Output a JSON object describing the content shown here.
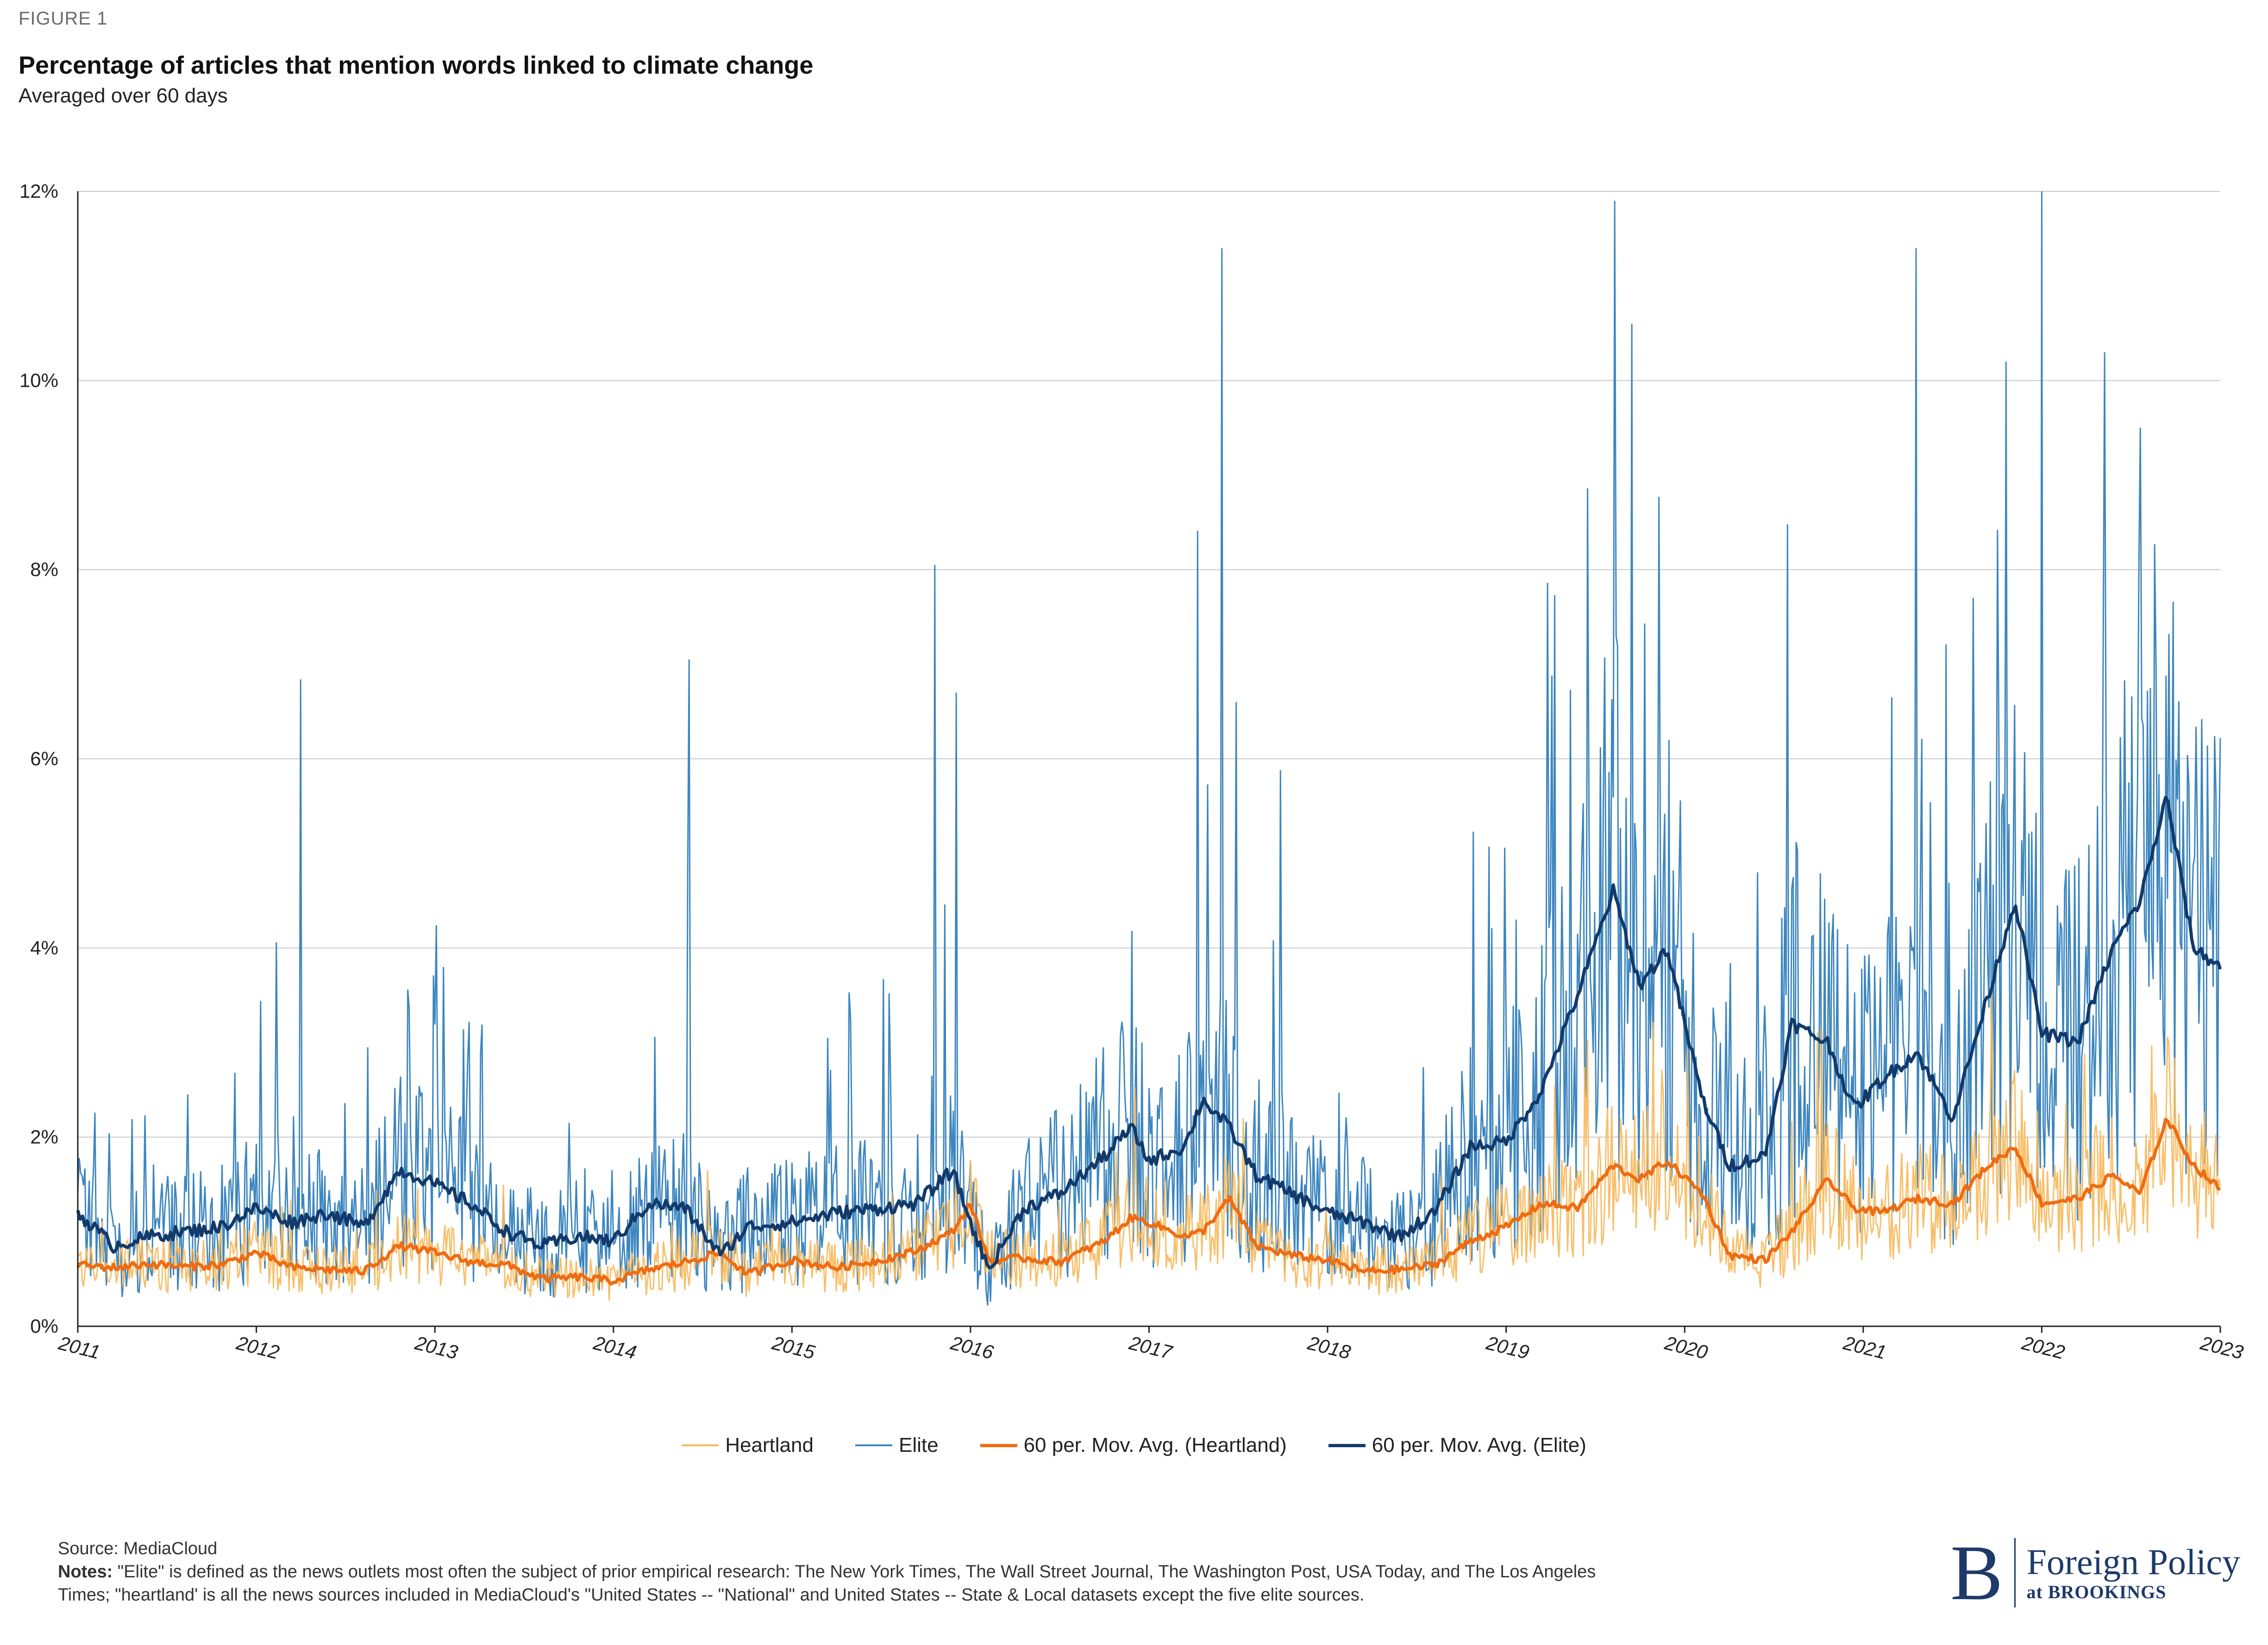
{
  "figure_label": "FIGURE 1",
  "chart_data": {
    "type": "line",
    "title": "Percentage of articles that mention words linked to climate change",
    "subtitle": "Averaged over 60 days",
    "xlabel": "",
    "ylabel": "",
    "xlim": [
      2011,
      2023
    ],
    "ylim": [
      0,
      12
    ],
    "x_ticks": [
      "2011",
      "2012",
      "2013",
      "2014",
      "2015",
      "2016",
      "2017",
      "2018",
      "2019",
      "2020",
      "2021",
      "2022",
      "2023"
    ],
    "y_ticks": [
      "0%",
      "2%",
      "4%",
      "6%",
      "8%",
      "10%",
      "12%"
    ],
    "grid": "horizontal",
    "legend_position": "bottom",
    "colors": {
      "heartland": "#f7b85a",
      "elite": "#3d86bf",
      "ma_heartland": "#ef6c12",
      "ma_elite": "#123a6b"
    },
    "series": [
      {
        "name": "Heartland",
        "key": "heartland",
        "x": [],
        "values": []
      },
      {
        "name": "Elite",
        "key": "elite",
        "x": [],
        "values": []
      },
      {
        "name": "60 per. Mov. Avg. (Heartland)",
        "key": "ma_heartland",
        "x": [
          2011.0,
          2011.2,
          2011.4,
          2011.6,
          2011.8,
          2012.0,
          2012.2,
          2012.4,
          2012.6,
          2012.8,
          2012.95,
          2013.2,
          2013.4,
          2013.6,
          2013.8,
          2014.0,
          2014.2,
          2014.4,
          2014.6,
          2014.75,
          2015.0,
          2015.25,
          2015.5,
          2015.7,
          2015.9,
          2016.0,
          2016.1,
          2016.3,
          2016.5,
          2016.75,
          2016.9,
          2017.0,
          2017.2,
          2017.3,
          2017.45,
          2017.6,
          2017.8,
          2018.0,
          2018.2,
          2018.4,
          2018.6,
          2018.8,
          2019.0,
          2019.2,
          2019.4,
          2019.6,
          2019.75,
          2019.9,
          2020.1,
          2020.25,
          2020.45,
          2020.6,
          2020.8,
          2020.95,
          2021.1,
          2021.3,
          2021.5,
          2021.7,
          2021.85,
          2022.0,
          2022.2,
          2022.4,
          2022.55,
          2022.7,
          2022.85,
          2023.0
        ],
        "values": [
          0.65,
          0.62,
          0.66,
          0.63,
          0.65,
          0.78,
          0.62,
          0.6,
          0.58,
          0.85,
          0.8,
          0.68,
          0.65,
          0.5,
          0.52,
          0.48,
          0.6,
          0.68,
          0.78,
          0.55,
          0.7,
          0.62,
          0.7,
          0.8,
          1.0,
          1.3,
          0.7,
          0.72,
          0.68,
          0.9,
          1.15,
          1.1,
          0.95,
          1.0,
          1.35,
          0.85,
          0.75,
          0.7,
          0.58,
          0.6,
          0.65,
          0.9,
          1.05,
          1.3,
          1.25,
          1.7,
          1.55,
          1.75,
          1.4,
          0.75,
          0.7,
          1.0,
          1.55,
          1.25,
          1.2,
          1.35,
          1.3,
          1.7,
          1.9,
          1.3,
          1.35,
          1.6,
          1.4,
          2.2,
          1.7,
          1.45
        ]
      },
      {
        "name": "60 per. Mov. Avg. (Elite)",
        "key": "ma_elite",
        "x": [
          2011.0,
          2011.2,
          2011.4,
          2011.6,
          2011.8,
          2012.0,
          2012.2,
          2012.4,
          2012.6,
          2012.8,
          2012.95,
          2013.2,
          2013.4,
          2013.6,
          2013.8,
          2014.0,
          2014.2,
          2014.4,
          2014.6,
          2014.75,
          2015.0,
          2015.25,
          2015.5,
          2015.7,
          2015.9,
          2016.0,
          2016.1,
          2016.3,
          2016.5,
          2016.75,
          2016.9,
          2017.0,
          2017.2,
          2017.3,
          2017.45,
          2017.6,
          2017.8,
          2018.0,
          2018.2,
          2018.4,
          2018.6,
          2018.8,
          2019.0,
          2019.2,
          2019.4,
          2019.6,
          2019.75,
          2019.9,
          2020.1,
          2020.25,
          2020.45,
          2020.6,
          2020.8,
          2020.95,
          2021.1,
          2021.3,
          2021.5,
          2021.7,
          2021.85,
          2022.0,
          2022.2,
          2022.4,
          2022.55,
          2022.7,
          2022.85,
          2023.0
        ],
        "values": [
          1.2,
          0.85,
          0.95,
          1.0,
          1.05,
          1.25,
          1.1,
          1.2,
          1.05,
          1.65,
          1.55,
          1.3,
          1.0,
          0.85,
          0.95,
          0.9,
          1.3,
          1.25,
          0.75,
          1.05,
          1.1,
          1.2,
          1.25,
          1.3,
          1.65,
          1.1,
          0.6,
          1.25,
          1.4,
          1.8,
          2.1,
          1.75,
          1.9,
          2.4,
          2.1,
          1.6,
          1.4,
          1.2,
          1.1,
          0.95,
          1.2,
          1.9,
          1.95,
          2.5,
          3.5,
          4.6,
          3.6,
          4.0,
          2.4,
          1.7,
          1.8,
          3.2,
          3.0,
          2.3,
          2.6,
          2.9,
          2.2,
          3.5,
          4.5,
          3.1,
          3.0,
          4.0,
          4.5,
          5.6,
          4.0,
          3.8
        ]
      }
    ]
  },
  "footer": {
    "source_label": "Source:",
    "source_text": "MediaCloud",
    "notes_label": "Notes:",
    "notes_text": "\"Elite\" is defined as the news outlets most often the subject of prior empirical research: The New York Times, The Wall Street Journal, The Washington Post, USA Today, and The Los Angeles Times; \"heartland' is all the news sources included in MediaCloud's \"United States -- \"National\" and United States -- State & Local datasets except the five elite sources."
  },
  "logo": {
    "mark": "B",
    "name": "Foreign Policy",
    "sub": "at BROOKINGS"
  }
}
